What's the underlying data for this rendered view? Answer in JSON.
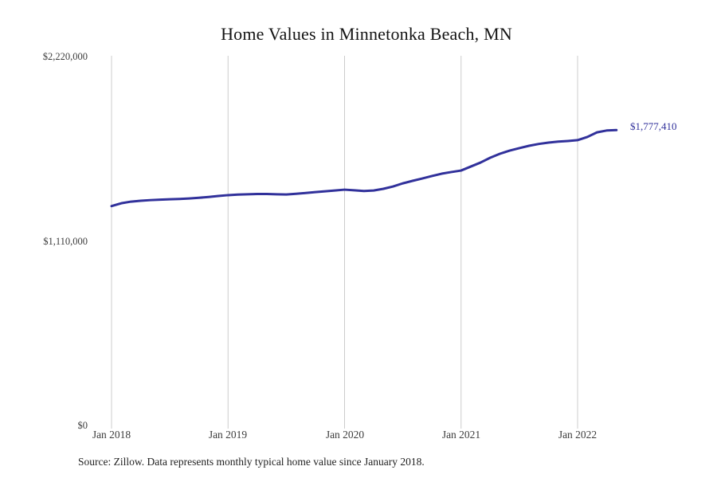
{
  "title": "Home Values in Minnetonka Beach, MN",
  "source_note": "Source: Zillow. Data represents monthly typical home value since January 2018.",
  "colors": {
    "line": "#31319b",
    "grid": "#cccccc",
    "annotation": "#31319b",
    "tick_text": "#3c3c3c",
    "title_text": "#141414"
  },
  "chart_data": {
    "type": "line",
    "title": "Home Values in Minnetonka Beach, MN",
    "xlabel": "",
    "ylabel": "",
    "ylim": [
      0,
      2220000
    ],
    "grid": "vertical-only",
    "legend": "none",
    "final_value_label": "$1,777,410",
    "final_value": 1777410,
    "y_ticks": [
      {
        "label": "$0",
        "value": 0
      },
      {
        "label": "$1,110,000",
        "value": 1110000
      },
      {
        "label": "$2,220,000",
        "value": 2220000
      }
    ],
    "x_tick_labels": [
      "Jan 2018",
      "Jan 2019",
      "Jan 2020",
      "Jan 2021",
      "Jan 2022"
    ],
    "x_tick_month_indices": [
      0,
      12,
      24,
      36,
      48
    ],
    "months": [
      "2018-01",
      "2018-02",
      "2018-03",
      "2018-04",
      "2018-05",
      "2018-06",
      "2018-07",
      "2018-08",
      "2018-09",
      "2018-10",
      "2018-11",
      "2018-12",
      "2019-01",
      "2019-02",
      "2019-03",
      "2019-04",
      "2019-05",
      "2019-06",
      "2019-07",
      "2019-08",
      "2019-09",
      "2019-10",
      "2019-11",
      "2019-12",
      "2020-01",
      "2020-02",
      "2020-03",
      "2020-04",
      "2020-05",
      "2020-06",
      "2020-07",
      "2020-08",
      "2020-09",
      "2020-10",
      "2020-11",
      "2020-12",
      "2021-01",
      "2021-02",
      "2021-03",
      "2021-04",
      "2021-05",
      "2021-06",
      "2021-07",
      "2021-08",
      "2021-09",
      "2021-10",
      "2021-11",
      "2021-12",
      "2022-01",
      "2022-02",
      "2022-03",
      "2022-04",
      "2022-05"
    ],
    "values": [
      1320000,
      1337000,
      1347000,
      1352000,
      1356000,
      1359000,
      1361000,
      1363000,
      1366000,
      1370000,
      1375000,
      1381000,
      1386000,
      1389000,
      1391000,
      1393000,
      1393000,
      1391000,
      1390000,
      1394000,
      1399000,
      1404000,
      1409000,
      1414000,
      1419000,
      1415000,
      1411000,
      1414000,
      1424000,
      1438000,
      1457000,
      1472000,
      1486000,
      1501000,
      1515000,
      1525000,
      1534000,
      1558000,
      1582000,
      1611000,
      1635000,
      1654000,
      1669000,
      1683000,
      1694000,
      1702000,
      1708000,
      1712000,
      1717000,
      1736000,
      1764000,
      1775000,
      1777410
    ]
  }
}
